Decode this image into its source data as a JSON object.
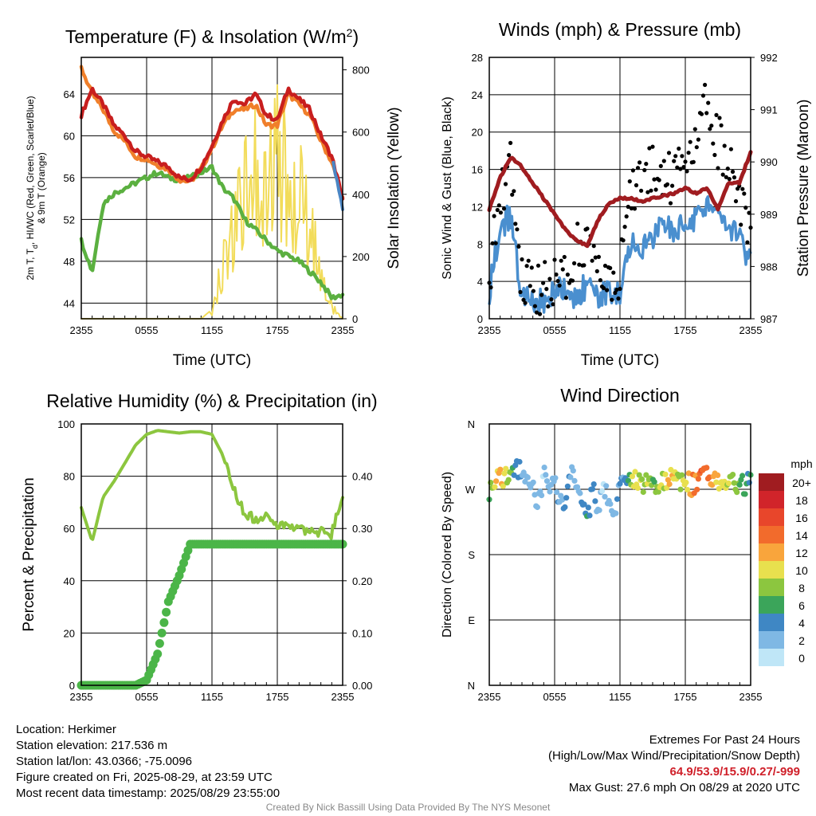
{
  "panels": {
    "temperature": {
      "title": "Temperature (F) & Insolation (W/m",
      "title_sup": "2",
      "title_end": ")",
      "ylabel_line1": "2m T, T",
      "ylabel_sub": "d",
      "ylabel_line1_end": ", HI/WC (Red, Green, Scarlet/Blue)",
      "ylabel_line2": "& 9m T (Orange)",
      "y2label": "Solar Insolation (Yellow)",
      "xlabel": "Time (UTC)"
    },
    "winds": {
      "title": "Winds (mph) & Pressure (mb)",
      "ylabel": "Sonic Wind & Gust (Blue, Black)",
      "y2label": "Station Pressure (Maroon)",
      "xlabel": "Time (UTC)"
    },
    "humidity": {
      "title": "Relative Humidity (%) & Precipitation (in)",
      "ylabel": "Percent & Precipitation"
    },
    "direction": {
      "title": "Wind Direction",
      "ylabel": "Direction (Colored By Speed)",
      "colorbar_title": "mph",
      "colorbar_labels": [
        "20+",
        "18",
        "16",
        "14",
        "12",
        "10",
        "8",
        "6",
        "4",
        "2",
        "0"
      ],
      "colorbar_colors": [
        "#a01c20",
        "#d1242a",
        "#e8462b",
        "#f26b2c",
        "#f9a53c",
        "#e8e04e",
        "#8cc63f",
        "#3ba55a",
        "#3f87c4",
        "#7fb8e4",
        "#bfe6f7"
      ]
    }
  },
  "info": {
    "location": "Location: Herkimer",
    "elevation": "Station elevation: 217.536 m",
    "latlon": "Station lat/lon: 43.0366; -75.0096",
    "created": "Figure created on Fri, 2025-08-29, at 23:59 UTC",
    "recent": "Most recent data timestamp: 2025/08/29 23:55:00",
    "extremes_title": "Extremes For Past 24 Hours",
    "extremes_legend": "(High/Low/Max Wind/Precipitation/Snow Depth)",
    "extremes_values": "64.9/53.9/15.9/0.27/-999",
    "max_gust": "Max Gust: 27.6 mph On 08/29 at 2020 UTC"
  },
  "credit": "Created By Nick Bassill Using Data Provided By The NYS Mesonet",
  "chart_data": [
    {
      "type": "line",
      "title": "Temperature (F) & Insolation (W/m2)",
      "xlabel": "Time (UTC)",
      "ylabel": "2m T, Td, HI/WC (Red, Green, Scarlet/Blue) & 9m T (Orange)",
      "y2label": "Solar Insolation (Yellow)",
      "x_ticks": [
        "2355",
        "0555",
        "1155",
        "1755",
        "2355"
      ],
      "x": [
        0,
        1,
        2,
        3,
        4,
        5,
        6,
        7,
        8,
        9,
        10,
        11,
        12,
        13,
        14,
        15,
        16,
        17,
        18,
        19,
        20,
        21,
        22,
        23,
        24
      ],
      "xlim": [
        0,
        24
      ],
      "ylim": [
        42.5,
        67.5
      ],
      "yticks": [
        44,
        48,
        52,
        56,
        60,
        64
      ],
      "y2lim": [
        0,
        840
      ],
      "y2ticks": [
        0,
        200,
        400,
        600,
        800
      ],
      "series": [
        {
          "name": "2m T",
          "color": "#c81e1e",
          "axis": "left",
          "values": [
            62.0,
            64.5,
            63.0,
            61.0,
            60.0,
            58.5,
            58.0,
            57.5,
            57.0,
            56.0,
            55.8,
            57.0,
            59.0,
            61.5,
            63.5,
            63.0,
            64.0,
            62.0,
            61.5,
            64.5,
            63.5,
            62.5,
            60.0,
            58.0,
            54.0
          ]
        },
        {
          "name": "9m T",
          "color": "#f07f2a",
          "axis": "left",
          "values": [
            66.5,
            64.0,
            62.5,
            60.5,
            59.5,
            58.0,
            57.8,
            57.2,
            56.8,
            55.8,
            55.6,
            56.8,
            58.8,
            61.0,
            62.5,
            62.5,
            63.0,
            61.0,
            61.0,
            64.0,
            63.0,
            62.0,
            59.5,
            57.5,
            54.0
          ]
        },
        {
          "name": "Td",
          "color": "#5bb040",
          "axis": "left",
          "values": [
            50.0,
            47.0,
            53.5,
            54.5,
            55.0,
            55.5,
            56.0,
            56.5,
            56.0,
            55.8,
            56.0,
            56.5,
            57.0,
            55.0,
            54.0,
            52.0,
            51.0,
            50.0,
            49.0,
            48.5,
            48.0,
            47.0,
            46.0,
            44.5,
            44.8
          ]
        },
        {
          "name": "WC",
          "color": "#4a86c5",
          "axis": "left",
          "values": [
            null,
            null,
            null,
            null,
            null,
            null,
            null,
            null,
            null,
            null,
            null,
            null,
            null,
            null,
            null,
            null,
            null,
            null,
            null,
            null,
            null,
            null,
            null,
            58.0,
            53.0
          ]
        },
        {
          "name": "Solar Insolation",
          "color": "#f2dc5a",
          "axis": "right",
          "values": [
            0,
            0,
            0,
            0,
            0,
            0,
            0,
            0,
            0,
            0,
            0,
            0,
            30,
            250,
            420,
            560,
            700,
            640,
            700,
            600,
            550,
            400,
            200,
            50,
            0
          ]
        }
      ]
    },
    {
      "type": "line",
      "title": "Winds (mph) & Pressure (mb)",
      "xlabel": "Time (UTC)",
      "ylabel": "Sonic Wind & Gust (Blue, Black)",
      "y2label": "Station Pressure (Maroon)",
      "x_ticks": [
        "2355",
        "0555",
        "1155",
        "1755",
        "2355"
      ],
      "x": [
        0,
        1,
        2,
        3,
        4,
        5,
        6,
        7,
        8,
        9,
        10,
        11,
        12,
        13,
        14,
        15,
        16,
        17,
        18,
        19,
        20,
        21,
        22,
        23,
        24
      ],
      "xlim": [
        0,
        24
      ],
      "ylim": [
        0,
        28
      ],
      "yticks": [
        0,
        4,
        8,
        12,
        16,
        20,
        24,
        28
      ],
      "y2lim": [
        987,
        992
      ],
      "y2ticks": [
        987,
        988,
        989,
        990,
        991,
        992
      ],
      "series": [
        {
          "name": "Sonic Wind",
          "color": "#4a8fcf",
          "axis": "left",
          "values": [
            3,
            10,
            11,
            2,
            2,
            2,
            3,
            3,
            2,
            4,
            2,
            3,
            3,
            8,
            7,
            9,
            10,
            9,
            10,
            11,
            12,
            11,
            10,
            9,
            6
          ]
        },
        {
          "name": "Gust",
          "color": "#000000",
          "axis": "left",
          "style": "points",
          "values": [
            3.5,
            14,
            16,
            4,
            3,
            3,
            4,
            4,
            8,
            7,
            4,
            4,
            5,
            14,
            15,
            16,
            16,
            15,
            17,
            20,
            23,
            19,
            16,
            13,
            9
          ]
        },
        {
          "name": "Station Pressure",
          "color": "#a01c20",
          "axis": "right",
          "values": [
            989.1,
            989.7,
            990.1,
            989.9,
            989.6,
            989.3,
            989.0,
            988.7,
            988.5,
            988.4,
            988.9,
            989.2,
            989.3,
            989.3,
            989.25,
            989.3,
            989.35,
            989.4,
            989.5,
            989.4,
            989.5,
            989.1,
            989.6,
            989.6,
            990.2
          ]
        }
      ]
    },
    {
      "type": "line",
      "title": "Relative Humidity (%) & Precipitation (in)",
      "ylabel": "Percent & Precipitation",
      "x_ticks": [
        "2355",
        "0555",
        "1155",
        "1755",
        "2355"
      ],
      "x": [
        0,
        1,
        2,
        3,
        4,
        5,
        6,
        7,
        8,
        9,
        10,
        11,
        12,
        13,
        14,
        15,
        16,
        17,
        18,
        19,
        20,
        21,
        22,
        23,
        24
      ],
      "xlim": [
        0,
        24
      ],
      "ylim": [
        0,
        100
      ],
      "yticks": [
        0,
        20,
        40,
        60,
        80,
        100
      ],
      "y2lim": [
        0,
        0.5
      ],
      "y2ticks": [
        "0.00",
        "0.10",
        "0.20",
        "0.30",
        "0.40"
      ],
      "series": [
        {
          "name": "Relative Humidity",
          "color": "#8cc63f",
          "axis": "left",
          "values": [
            68,
            55,
            72,
            78,
            85,
            92,
            96,
            97.5,
            97,
            96.5,
            97,
            97,
            96,
            88,
            75,
            66,
            63,
            65,
            60,
            62,
            60,
            58,
            59,
            58,
            72
          ]
        },
        {
          "name": "Precipitation",
          "color": "#4bb548",
          "axis": "right",
          "values": [
            0,
            0,
            0,
            0,
            0,
            0,
            0.01,
            0.06,
            0.16,
            0.21,
            0.27,
            0.27,
            0.27,
            0.27,
            0.27,
            0.27,
            0.27,
            0.27,
            0.27,
            0.27,
            0.27,
            0.27,
            0.27,
            0.27,
            0.27
          ]
        }
      ]
    },
    {
      "type": "scatter",
      "title": "Wind Direction",
      "ylabel": "Direction (Colored By Speed)",
      "x_ticks": [
        "2355",
        "0555",
        "1155",
        "1755",
        "2355"
      ],
      "xlim": [
        0,
        24
      ],
      "yticks": [
        "N",
        "E",
        "S",
        "W",
        "N"
      ],
      "ylim": [
        0,
        360
      ],
      "colorbar": {
        "title": "mph",
        "levels": [
          "0",
          "2",
          "4",
          "6",
          "8",
          "10",
          "12",
          "14",
          "16",
          "18",
          "20+"
        ]
      },
      "x": [
        0,
        0.5,
        1,
        1.5,
        2,
        2.5,
        3,
        3.5,
        4,
        4.5,
        5,
        5.5,
        6,
        6.5,
        7,
        7.5,
        8,
        8.5,
        9,
        9.5,
        10,
        10.5,
        11,
        11.5,
        12,
        12.5,
        13,
        13.5,
        14,
        14.5,
        15,
        15.5,
        16,
        16.5,
        17,
        17.5,
        18,
        18.5,
        19,
        19.5,
        20,
        20.5,
        21,
        21.5,
        22,
        22.5,
        23,
        23.5,
        24
      ],
      "directions": [
        270,
        285,
        290,
        285,
        295,
        300,
        290,
        285,
        270,
        250,
        290,
        280,
        285,
        250,
        240,
        300,
        265,
        250,
        225,
        270,
        240,
        275,
        250,
        230,
        290,
        285,
        275,
        285,
        280,
        280,
        285,
        275,
        280,
        285,
        280,
        280,
        285,
        275,
        280,
        285,
        290,
        285,
        280,
        280,
        285,
        280,
        280,
        275,
        285
      ],
      "speeds": [
        6,
        10,
        12,
        10,
        7,
        4,
        2,
        2,
        2,
        2,
        1,
        2,
        2,
        3,
        3,
        2,
        1,
        4,
        5,
        4,
        2,
        1,
        3,
        2,
        4,
        3,
        9,
        10,
        8,
        9,
        7,
        8,
        9,
        12,
        11,
        8,
        10,
        12,
        14,
        15,
        13,
        12,
        11,
        10,
        9,
        8,
        7,
        6,
        5
      ]
    }
  ]
}
